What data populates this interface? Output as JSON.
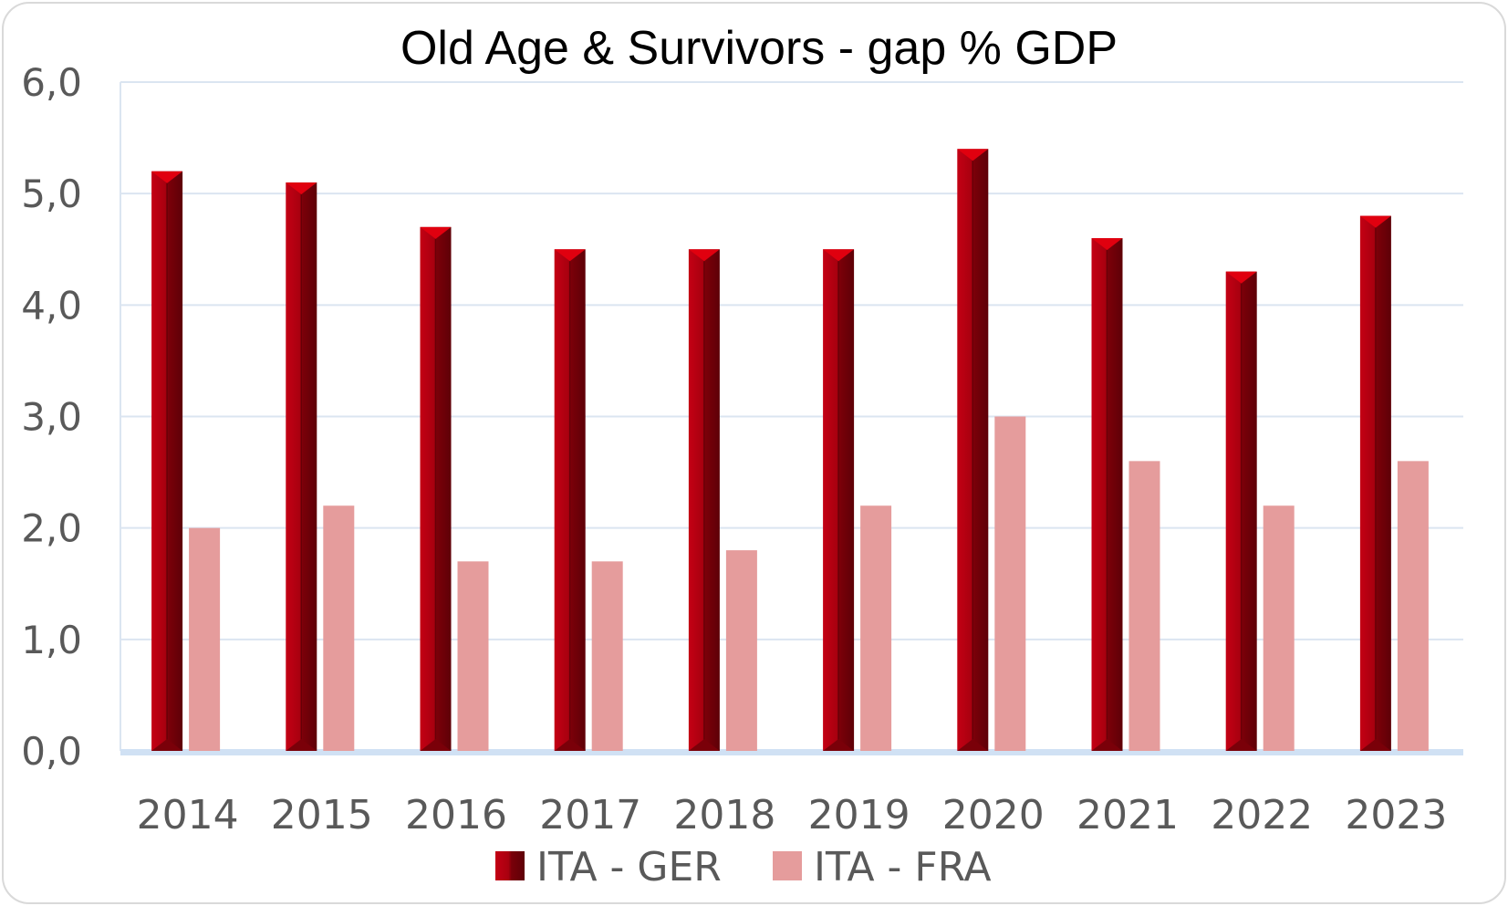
{
  "chart_data": {
    "type": "bar",
    "title": "Old Age & Survivors - gap % GDP",
    "xlabel": "",
    "ylabel": "",
    "categories": [
      "2014",
      "2015",
      "2016",
      "2017",
      "2018",
      "2019",
      "2020",
      "2021",
      "2022",
      "2023"
    ],
    "series": [
      {
        "name": "ITA - GER",
        "color": "#a50010",
        "values": [
          5.2,
          5.1,
          4.7,
          4.5,
          4.5,
          4.5,
          5.4,
          4.6,
          4.3,
          4.8
        ]
      },
      {
        "name": "ITA - FRA",
        "color": "#e59c9c",
        "values": [
          2.0,
          2.2,
          1.7,
          1.7,
          1.8,
          2.2,
          3.0,
          2.6,
          2.2,
          2.6
        ]
      }
    ],
    "ylim": [
      0,
      6
    ],
    "yticks": [
      "0,0",
      "1,0",
      "2,0",
      "3,0",
      "4,0",
      "5,0",
      "6,0"
    ],
    "grid": true,
    "legend_position": "bottom"
  }
}
